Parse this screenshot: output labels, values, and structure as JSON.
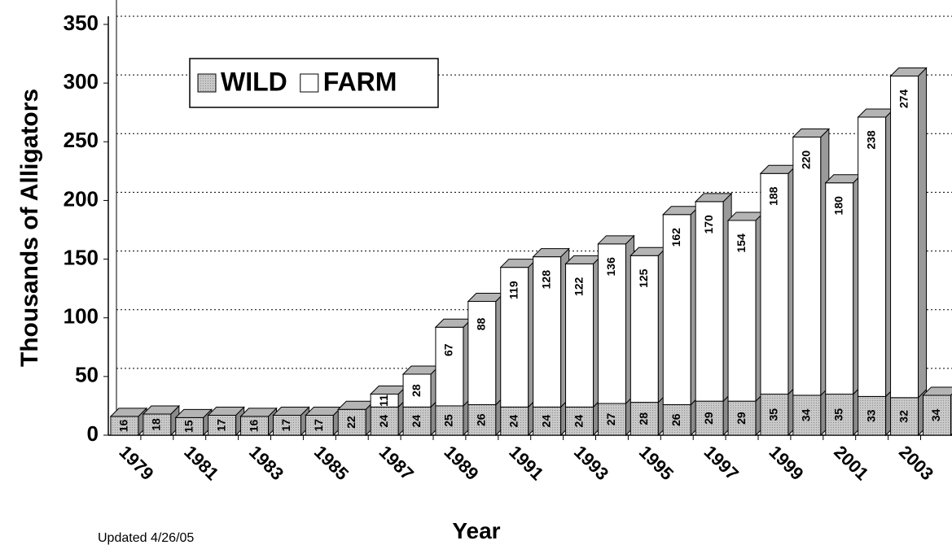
{
  "chart_data": {
    "type": "bar",
    "stacked": true,
    "y_label": "Thousands of Alligators",
    "x_label": "Year",
    "note": "Updated 4/26/05",
    "categories": [
      "1979",
      null,
      "1981",
      null,
      "1983",
      null,
      "1985",
      null,
      "1987",
      null,
      "1989",
      null,
      "1991",
      null,
      "1993",
      null,
      "1995",
      null,
      "1997",
      null,
      "1999",
      null,
      "2001",
      null,
      "2003",
      null
    ],
    "series": [
      {
        "name": "WILD",
        "color": "#c0c0c0",
        "values": [
          16,
          18,
          15,
          17,
          16,
          17,
          17,
          22,
          24,
          24,
          25,
          26,
          24,
          24,
          24,
          27,
          28,
          26,
          29,
          29,
          35,
          34,
          35,
          33,
          32,
          34
        ]
      },
      {
        "name": "FARM",
        "color": "#ffffff",
        "values": [
          null,
          null,
          null,
          null,
          null,
          null,
          null,
          null,
          11,
          28,
          67,
          88,
          119,
          128,
          122,
          136,
          125,
          162,
          170,
          154,
          188,
          220,
          180,
          238,
          274,
          null
        ]
      }
    ],
    "ylim": [
      0,
      350
    ],
    "yticks": [
      0,
      50,
      100,
      150,
      200,
      250,
      300,
      350
    ],
    "grid": true
  }
}
